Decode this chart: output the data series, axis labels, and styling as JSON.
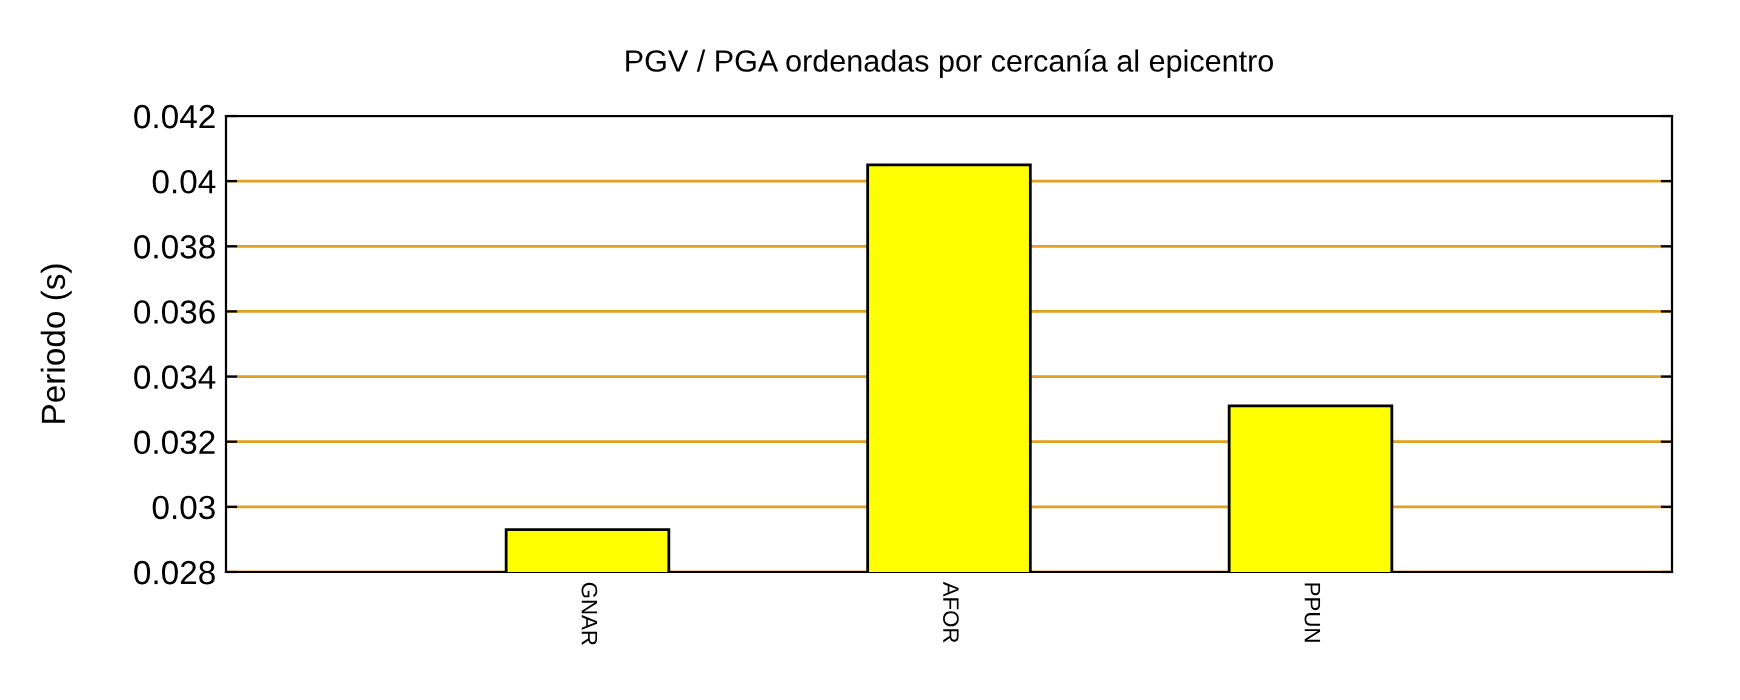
{
  "chart_data": {
    "type": "bar",
    "title": "PGV / PGA ordenadas por cercanía al epicentro",
    "ylabel": "Periodo (s)",
    "categories": [
      "GNAR",
      "AFOR",
      "PPUN"
    ],
    "values": [
      0.0293,
      0.0405,
      0.0331
    ],
    "color": "#ffff00",
    "ylim": [
      0.028,
      0.042
    ],
    "yticks": [
      0.028,
      0.03,
      0.032,
      0.034,
      0.036,
      0.038,
      0.04,
      0.042
    ],
    "grid": "y"
  }
}
